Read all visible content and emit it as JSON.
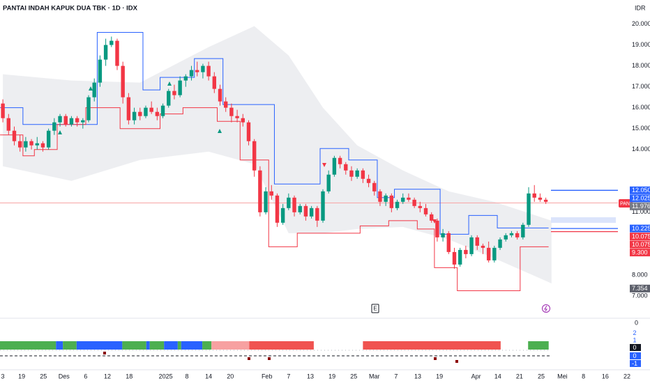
{
  "header": {
    "title": "PANTAI INDAH KAPUK DUA TBK · 1D · IDX",
    "currency": "IDR",
    "symbol_tag": "PANI",
    "events": [
      "E"
    ]
  },
  "chart_data": {
    "type": "candlestick",
    "up_color": "#089981",
    "down_color": "#f23645",
    "candles": [
      [
        16200,
        16400,
        15300,
        15500
      ],
      [
        15500,
        15700,
        14700,
        14900
      ],
      [
        14900,
        15100,
        14200,
        14400
      ],
      [
        14400,
        14700,
        13900,
        14100
      ],
      [
        14100,
        14600,
        13900,
        14400
      ],
      [
        14400,
        14500,
        14000,
        14200
      ],
      [
        14200,
        14600,
        14000,
        14300
      ],
      [
        14300,
        14400,
        13900,
        14100
      ],
      [
        14100,
        15000,
        14000,
        14900
      ],
      [
        14900,
        15500,
        14700,
        15300
      ],
      [
        15300,
        15700,
        15100,
        15600
      ],
      [
        15600,
        15700,
        15100,
        15200
      ],
      [
        15200,
        15600,
        15100,
        15500
      ],
      [
        15500,
        15600,
        15100,
        15300
      ],
      [
        15300,
        15500,
        15000,
        15400
      ],
      [
        15400,
        16600,
        15300,
        16500
      ],
      [
        16500,
        17400,
        16300,
        17200
      ],
      [
        17200,
        18500,
        17000,
        18300
      ],
      [
        18300,
        19300,
        18000,
        19000
      ],
      [
        19000,
        19400,
        18900,
        19200
      ],
      [
        19200,
        19300,
        17800,
        18000
      ],
      [
        18000,
        18200,
        16200,
        16500
      ],
      [
        16500,
        16700,
        15200,
        15400
      ],
      [
        15400,
        16000,
        15200,
        15800
      ],
      [
        15800,
        16000,
        15400,
        15600
      ],
      [
        15600,
        16100,
        15500,
        16000
      ],
      [
        16000,
        16300,
        15700,
        15800
      ],
      [
        15800,
        16000,
        15400,
        15600
      ],
      [
        15600,
        16200,
        15500,
        16100
      ],
      [
        16100,
        16900,
        16000,
        16800
      ],
      [
        16800,
        17100,
        16400,
        16600
      ],
      [
        16600,
        17500,
        16500,
        17300
      ],
      [
        17300,
        17600,
        17000,
        17500
      ],
      [
        17500,
        18000,
        17300,
        17800
      ],
      [
        17800,
        18200,
        17500,
        17700
      ],
      [
        17700,
        18100,
        17400,
        18000
      ],
      [
        18000,
        18200,
        17300,
        17500
      ],
      [
        17500,
        17700,
        16700,
        16900
      ],
      [
        16900,
        17100,
        16100,
        16300
      ],
      [
        16300,
        16500,
        15800,
        16000
      ],
      [
        16000,
        16200,
        15300,
        15600
      ],
      [
        15600,
        15900,
        15300,
        15500
      ],
      [
        15500,
        15700,
        15100,
        15300
      ],
      [
        15300,
        15400,
        14200,
        14400
      ],
      [
        14400,
        14500,
        12700,
        13000
      ],
      [
        13000,
        13200,
        10800,
        11000
      ],
      [
        11000,
        12200,
        10900,
        12000
      ],
      [
        12000,
        12300,
        11600,
        11800
      ],
      [
        11800,
        11900,
        10300,
        10500
      ],
      [
        10500,
        11400,
        10400,
        11200
      ],
      [
        11200,
        11900,
        11100,
        11700
      ],
      [
        11700,
        11800,
        10800,
        11000
      ],
      [
        11000,
        11400,
        10900,
        11300
      ],
      [
        11300,
        11400,
        10600,
        10800
      ],
      [
        10800,
        11300,
        10700,
        11200
      ],
      [
        11200,
        11300,
        10300,
        10600
      ],
      [
        10600,
        12100,
        10500,
        12000
      ],
      [
        12000,
        13000,
        11900,
        12800
      ],
      [
        12800,
        13700,
        12700,
        13600
      ],
      [
        13600,
        13700,
        13100,
        13300
      ],
      [
        13300,
        13400,
        12800,
        13000
      ],
      [
        13000,
        13200,
        12500,
        12700
      ],
      [
        12700,
        13100,
        12600,
        13000
      ],
      [
        13000,
        13100,
        12400,
        12600
      ],
      [
        12600,
        12800,
        12200,
        12400
      ],
      [
        12400,
        12500,
        11800,
        12000
      ],
      [
        12000,
        12100,
        11300,
        11500
      ],
      [
        11500,
        11900,
        11300,
        11800
      ],
      [
        11800,
        11900,
        11000,
        11200
      ],
      [
        11200,
        11600,
        11100,
        11500
      ],
      [
        11500,
        11900,
        11400,
        11700
      ],
      [
        11700,
        11900,
        11500,
        11600
      ],
      [
        11600,
        11700,
        11200,
        11300
      ],
      [
        11300,
        11500,
        11000,
        11200
      ],
      [
        11200,
        11400,
        10800,
        10900
      ],
      [
        10900,
        11000,
        10500,
        10600
      ],
      [
        10600,
        10700,
        9600,
        9800
      ],
      [
        9800,
        10200,
        9600,
        10000
      ],
      [
        10000,
        10100,
        9000,
        9100
      ],
      [
        9100,
        9300,
        8300,
        8500
      ],
      [
        8500,
        9300,
        8400,
        9200
      ],
      [
        9200,
        9400,
        8800,
        9000
      ],
      [
        9000,
        9900,
        8900,
        9800
      ],
      [
        9800,
        9900,
        9200,
        9400
      ],
      [
        9400,
        9500,
        9000,
        9300
      ],
      [
        9300,
        9600,
        8600,
        8700
      ],
      [
        8700,
        9400,
        8600,
        9300
      ],
      [
        9300,
        9800,
        9200,
        9700
      ],
      [
        9700,
        10000,
        9600,
        9900
      ],
      [
        9900,
        10100,
        9800,
        10000
      ],
      [
        10000,
        10100,
        9700,
        9800
      ],
      [
        9800,
        10500,
        9700,
        10400
      ],
      [
        10400,
        12200,
        10300,
        11900
      ],
      [
        11900,
        12300,
        11500,
        11700
      ],
      [
        11700,
        11900,
        11500,
        11600
      ],
      [
        11600,
        11700,
        11400,
        11500
      ]
    ],
    "xlim": [
      -0.5,
      113.23
    ],
    "ylim": [
      6000,
      21150
    ],
    "yticks": [
      {
        "value": 20000,
        "label": "20.000"
      },
      {
        "value": 19000,
        "label": "19.000"
      },
      {
        "value": 18000,
        "label": "18.000"
      },
      {
        "value": 17000,
        "label": "17.000"
      },
      {
        "value": 16000,
        "label": "16.000"
      },
      {
        "value": 15000,
        "label": "15.000"
      },
      {
        "value": 14000,
        "label": "14.000"
      },
      {
        "value": 11000,
        "label": "11.000"
      },
      {
        "value": 8000,
        "label": "8.000"
      },
      {
        "value": 7000,
        "label": "7.000"
      }
    ],
    "xticks": [
      {
        "value": -0.5,
        "label": "3"
      },
      {
        "value": 3.3,
        "label": "19"
      },
      {
        "value": 7.1,
        "label": "25"
      },
      {
        "value": 10.7,
        "label": "Des"
      },
      {
        "value": 14.5,
        "label": "6"
      },
      {
        "value": 18.3,
        "label": "12"
      },
      {
        "value": 22.1,
        "label": "18"
      },
      {
        "value": 28.5,
        "label": "2025"
      },
      {
        "value": 32.2,
        "label": "8"
      },
      {
        "value": 36,
        "label": "14"
      },
      {
        "value": 39.8,
        "label": "20"
      },
      {
        "value": 46.2,
        "label": "Feb"
      },
      {
        "value": 50,
        "label": "7"
      },
      {
        "value": 53.8,
        "label": "13"
      },
      {
        "value": 57.6,
        "label": "19"
      },
      {
        "value": 61.4,
        "label": "25"
      },
      {
        "value": 65,
        "label": "Mar"
      },
      {
        "value": 68.8,
        "label": "7"
      },
      {
        "value": 72.6,
        "label": "13"
      },
      {
        "value": 76.4,
        "label": "19"
      },
      {
        "value": 82.8,
        "label": "Apr"
      },
      {
        "value": 86.6,
        "label": "14"
      },
      {
        "value": 90.4,
        "label": "21"
      },
      {
        "value": 94.2,
        "label": "25"
      },
      {
        "value": 97.9,
        "label": "Mei"
      },
      {
        "value": 101.6,
        "label": "8"
      },
      {
        "value": 105.4,
        "label": "16"
      },
      {
        "value": 109.2,
        "label": "22"
      }
    ],
    "cloud": {
      "color": "#e9eaee",
      "x": [
        0,
        12,
        24,
        36,
        44,
        50,
        56,
        62,
        70,
        78,
        86,
        96
      ],
      "upper": [
        17600,
        17300,
        17200,
        18900,
        19900,
        18500,
        16000,
        14200,
        13000,
        12000,
        11500,
        10600
      ],
      "lower": [
        13200,
        12500,
        13500,
        13900,
        13300,
        10000,
        10000,
        10200,
        10300,
        9700,
        8800,
        7600
      ]
    },
    "upper_band": {
      "color": "#2962ff",
      "x": [
        0,
        4,
        17,
        25,
        28,
        34,
        39,
        48,
        56,
        61,
        66,
        69,
        77,
        82,
        87
      ],
      "values": [
        16000,
        15200,
        19600,
        16850,
        17450,
        18350,
        16150,
        12350,
        14050,
        13500,
        11700,
        12100,
        9950,
        10850,
        10250
      ]
    },
    "lower_band": {
      "color": "#f23645",
      "x": [
        0,
        4,
        6,
        10,
        15,
        21,
        28,
        32,
        38,
        42,
        47,
        52,
        63,
        68,
        73,
        76,
        80,
        91
      ],
      "values": [
        14700,
        13700,
        14000,
        15200,
        16000,
        15000,
        15700,
        16000,
        15350,
        13500,
        9350,
        10000,
        10350,
        10600,
        10200,
        8350,
        7250,
        9350
      ]
    },
    "last_price": {
      "value": 11450,
      "color": "#f7a1a1"
    },
    "price_labels": [
      {
        "value": 12050,
        "label": "12.050",
        "color": "#2962ff"
      },
      {
        "value": 12025,
        "label": "12.025",
        "color": "#2962ff"
      },
      {
        "value": 11976,
        "label": "11.976",
        "color": "#787b86"
      },
      {
        "value": 10225,
        "label": "10.225",
        "color": "#2962ff"
      },
      {
        "value": 10075,
        "label": "10.075",
        "color": "#f23645"
      },
      {
        "value": 10075,
        "label": "10.075",
        "color": "#f23645"
      },
      {
        "value": 9300,
        "label": "9.300",
        "color": "#f23645"
      },
      {
        "value": 7354,
        "label": "7.354",
        "color": "#5d606b"
      }
    ],
    "indicator": {
      "top_label": "0",
      "ylim": [
        -2.95,
        3.71
      ],
      "yticks": [
        2,
        1,
        0
      ],
      "y2lim": [
        -1.73,
        4.64
      ],
      "y2ticks": [
        0,
        -1
      ],
      "segments": [
        {
          "from": -0.5,
          "to": 9.3,
          "color": "#4caf50"
        },
        {
          "from": 9.3,
          "to": 10.5,
          "color": "#2962ff"
        },
        {
          "from": 10.5,
          "to": 12.9,
          "color": "#4caf50"
        },
        {
          "from": 12.9,
          "to": 20.9,
          "color": "#2962ff"
        },
        {
          "from": 20.9,
          "to": 25.1,
          "color": "#4caf50"
        },
        {
          "from": 25.1,
          "to": 25.7,
          "color": "#2962ff"
        },
        {
          "from": 25.7,
          "to": 28.2,
          "color": "#4caf50"
        },
        {
          "from": 28.2,
          "to": 30.6,
          "color": "#2962ff"
        },
        {
          "from": 30.6,
          "to": 31.2,
          "color": "#4caf50"
        },
        {
          "from": 31.2,
          "to": 34.9,
          "color": "#2962ff"
        },
        {
          "from": 34.9,
          "to": 36.5,
          "color": "#4caf50"
        },
        {
          "from": 36.5,
          "to": 43.1,
          "color": "#f7a1a1"
        },
        {
          "from": 43.1,
          "to": 54.4,
          "color": "#f05350"
        },
        {
          "from": 63,
          "to": 87.1,
          "color": "#f05350"
        },
        {
          "from": 91.9,
          "to": 95.5,
          "color": "#4caf50"
        }
      ]
    }
  }
}
